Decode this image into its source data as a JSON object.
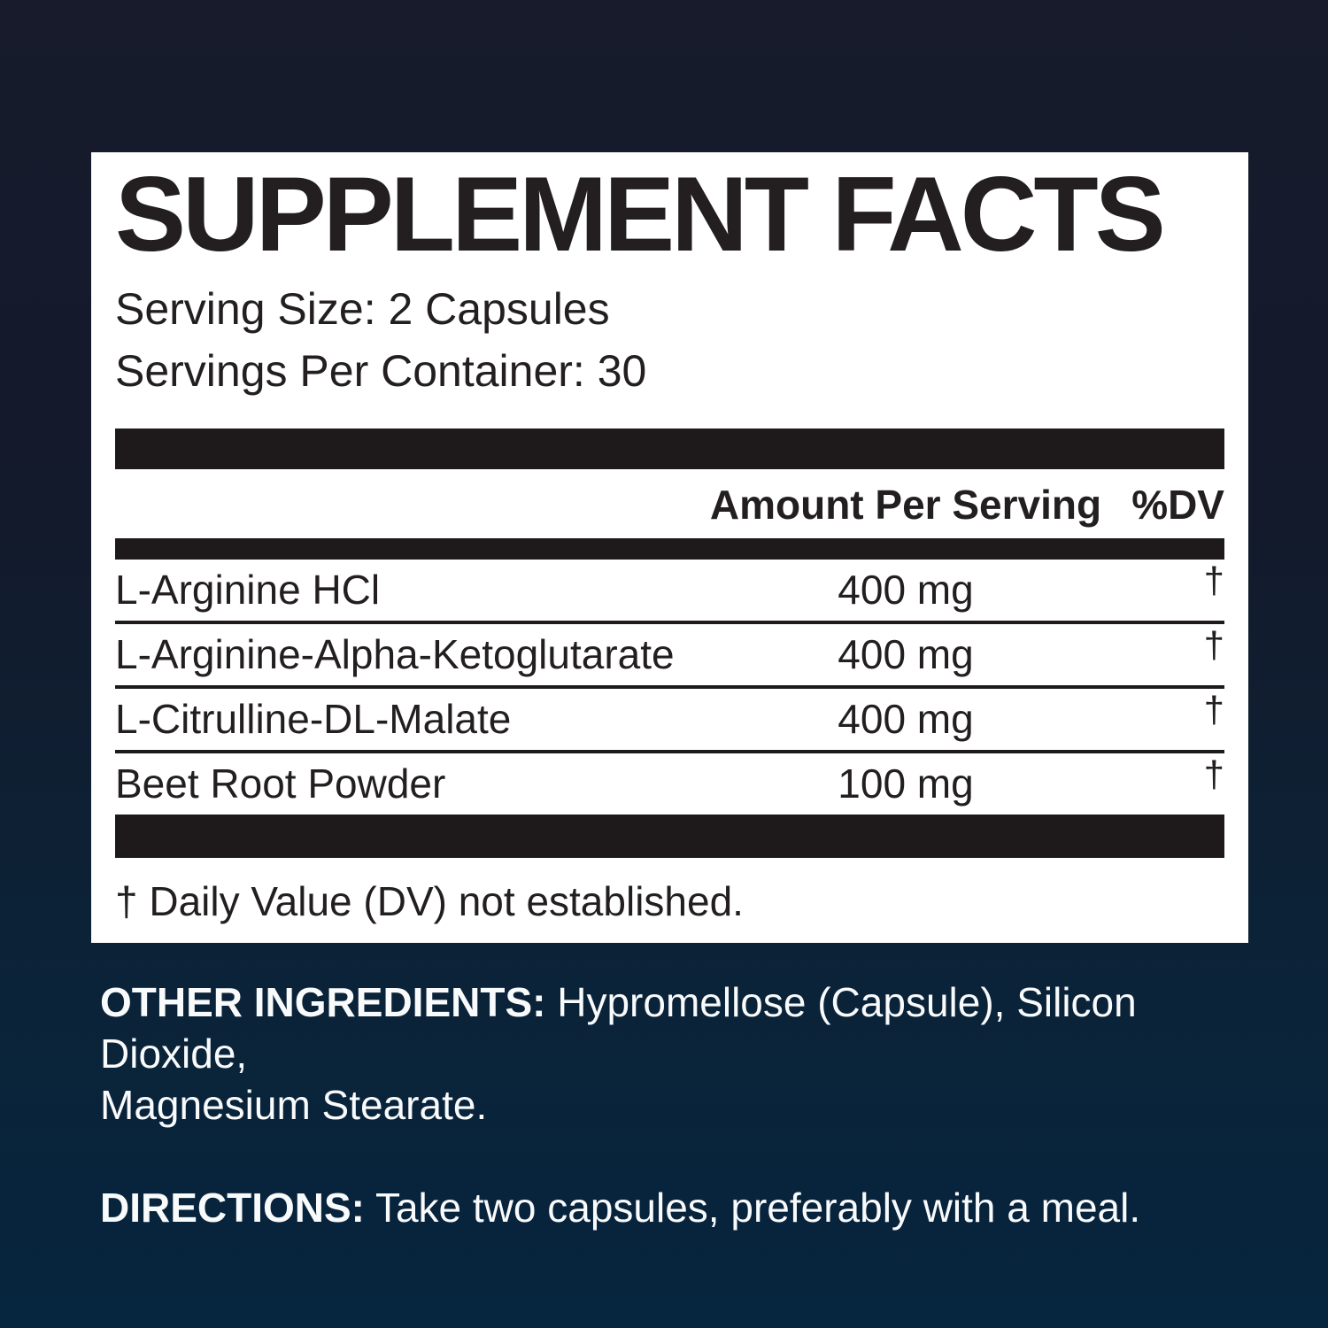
{
  "panel": {
    "title": "SUPPLEMENT FACTS",
    "serving_size": "Serving Size: 2 Capsules",
    "servings_per_container": "Servings Per Container: 30",
    "columns": {
      "amount": "Amount Per Serving",
      "dv": "%DV"
    },
    "rows": [
      {
        "name": "L-Arginine HCl",
        "amount": "400 mg",
        "dv": "†"
      },
      {
        "name": "L-Arginine-Alpha-Ketoglutarate",
        "amount": "400 mg",
        "dv": "†"
      },
      {
        "name": "L-Citrulline-DL-Malate",
        "amount": "400 mg",
        "dv": "†"
      },
      {
        "name": "Beet Root Powder",
        "amount": "100 mg",
        "dv": "†"
      }
    ],
    "footnote": "† Daily Value (DV) not established."
  },
  "other_ingredients": {
    "label": "OTHER INGREDIENTS:",
    "line1": " Hypromellose (Capsule), Silicon Dioxide,",
    "line2": "Magnesium Stearate."
  },
  "directions": {
    "label": "DIRECTIONS:",
    "text": " Take two capsules, preferably with a meal."
  },
  "colors": {
    "background_top": "#171b2c",
    "background_bottom": "#06253e",
    "panel_background": "#ffffff",
    "ink": "#1e1a1b",
    "light_text": "#f8fafc"
  }
}
